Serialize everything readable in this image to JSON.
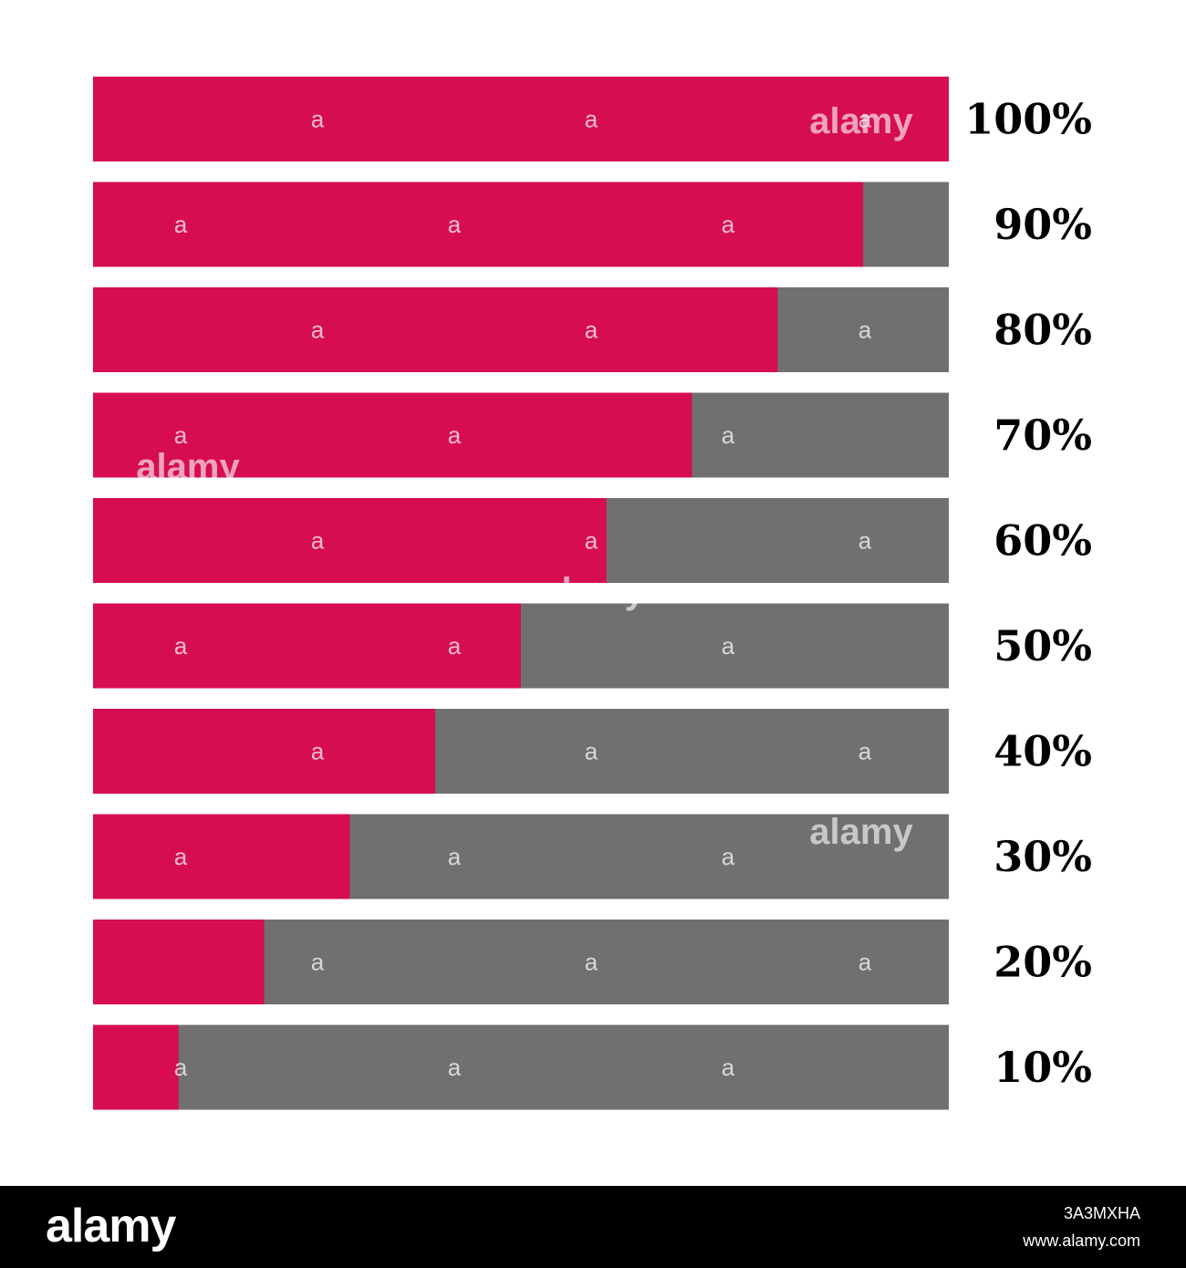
{
  "chart_data": {
    "type": "bar",
    "orientation": "horizontal",
    "stacked": true,
    "categories": [
      "100%",
      "90%",
      "80%",
      "70%",
      "60%",
      "50%",
      "40%",
      "30%",
      "20%",
      "10%"
    ],
    "values": [
      100,
      90,
      80,
      70,
      60,
      50,
      40,
      30,
      20,
      10
    ],
    "max": 100,
    "title": "",
    "xlabel": "",
    "ylabel": "",
    "grid": false,
    "legend": "none",
    "colors": {
      "filled": "#D60D52",
      "remaining": "#707070"
    }
  },
  "watermark": {
    "small_mark": "a",
    "brand": "alamy"
  },
  "footer": {
    "logo": "alamy",
    "image_id": "3A3MXHA",
    "url": "www.alamy.com"
  }
}
